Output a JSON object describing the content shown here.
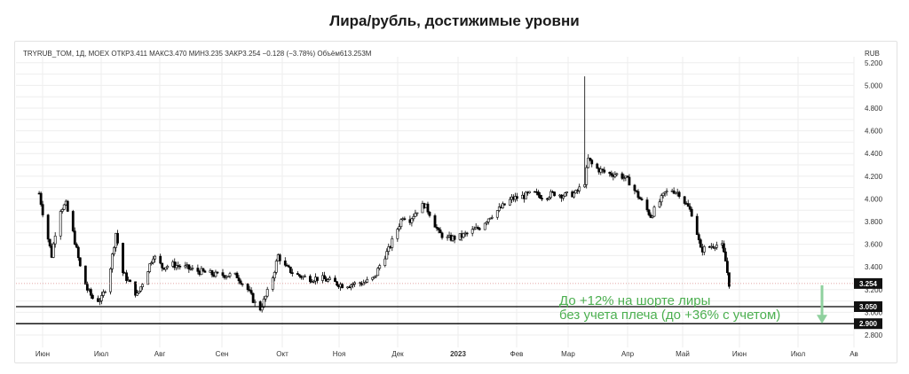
{
  "page": {
    "title": "Лира/рубль, достижимые уровни"
  },
  "chart_data": {
    "type": "candlestick",
    "title": "Лира/рубль, достижимые уровни",
    "info_line": "TRYRUB_TOM, 1Д, MOEX  ОТКР3.411  МАКС3.470  МИН3.235  ЗАКР3.254  −0.128 (−3.78%)  Объём613.253M",
    "currency": "RUB",
    "ylim": [
      2.8,
      5.2
    ],
    "y_ticks": [
      "2.800",
      "3.000",
      "3.200",
      "3.400",
      "3.600",
      "3.800",
      "4.000",
      "4.200",
      "4.400",
      "4.600",
      "4.800",
      "5.000",
      "5.200"
    ],
    "x_ticks": [
      "Июн",
      "Июл",
      "Авг",
      "Сен",
      "Окт",
      "Ноя",
      "Дек",
      "2023",
      "Фев",
      "Мар",
      "Апр",
      "Май",
      "Июн",
      "Июл",
      "Ав"
    ],
    "price_path": [
      [
        "2022-06-01",
        4.05
      ],
      [
        "2022-06-04",
        3.8
      ],
      [
        "2022-06-08",
        3.5
      ],
      [
        "2022-06-12",
        3.9
      ],
      [
        "2022-06-16",
        3.95
      ],
      [
        "2022-06-20",
        3.7
      ],
      [
        "2022-06-24",
        3.4
      ],
      [
        "2022-06-28",
        3.2
      ],
      [
        "2022-07-02",
        3.1
      ],
      [
        "2022-07-06",
        3.12
      ],
      [
        "2022-07-10",
        3.3
      ],
      [
        "2022-07-14",
        3.7
      ],
      [
        "2022-07-18",
        3.35
      ],
      [
        "2022-07-22",
        3.25
      ],
      [
        "2022-07-26",
        3.15
      ],
      [
        "2022-07-30",
        3.3
      ],
      [
        "2022-08-04",
        3.5
      ],
      [
        "2022-08-09",
        3.4
      ],
      [
        "2022-08-15",
        3.42
      ],
      [
        "2022-08-21",
        3.4
      ],
      [
        "2022-08-27",
        3.37
      ],
      [
        "2022-09-02",
        3.35
      ],
      [
        "2022-09-08",
        3.33
      ],
      [
        "2022-09-14",
        3.33
      ],
      [
        "2022-09-20",
        3.32
      ],
      [
        "2022-09-26",
        3.2
      ],
      [
        "2022-09-30",
        3.08
      ],
      [
        "2022-10-02",
        3.0
      ],
      [
        "2022-10-05",
        3.1
      ],
      [
        "2022-10-09",
        3.25
      ],
      [
        "2022-10-13",
        3.5
      ],
      [
        "2022-10-17",
        3.4
      ],
      [
        "2022-10-23",
        3.33
      ],
      [
        "2022-10-30",
        3.3
      ],
      [
        "2022-11-06",
        3.3
      ],
      [
        "2022-11-12",
        3.27
      ],
      [
        "2022-11-18",
        3.24
      ],
      [
        "2022-11-24",
        3.25
      ],
      [
        "2022-11-30",
        3.26
      ],
      [
        "2022-12-06",
        3.3
      ],
      [
        "2022-12-10",
        3.45
      ],
      [
        "2022-12-14",
        3.55
      ],
      [
        "2022-12-18",
        3.7
      ],
      [
        "2022-12-22",
        3.85
      ],
      [
        "2022-12-26",
        3.82
      ],
      [
        "2022-12-30",
        3.9
      ],
      [
        "2023-01-03",
        3.95
      ],
      [
        "2023-01-07",
        3.85
      ],
      [
        "2023-01-11",
        3.7
      ],
      [
        "2023-01-16",
        3.65
      ],
      [
        "2023-01-22",
        3.66
      ],
      [
        "2023-01-28",
        3.7
      ],
      [
        "2023-02-03",
        3.75
      ],
      [
        "2023-02-09",
        3.85
      ],
      [
        "2023-02-15",
        3.92
      ],
      [
        "2023-02-21",
        4.0
      ],
      [
        "2023-02-27",
        4.02
      ],
      [
        "2023-03-05",
        4.05
      ],
      [
        "2023-03-11",
        4.02
      ],
      [
        "2023-03-17",
        4.05
      ],
      [
        "2023-03-23",
        4.03
      ],
      [
        "2023-03-29",
        4.05
      ],
      [
        "2023-04-03",
        4.15
      ],
      [
        "2023-04-05",
        4.35
      ],
      [
        "2023-04-08",
        4.28
      ],
      [
        "2023-04-12",
        4.25
      ],
      [
        "2023-04-16",
        4.22
      ],
      [
        "2023-04-20",
        4.22
      ],
      [
        "2023-04-24",
        4.2
      ],
      [
        "2023-04-28",
        4.15
      ],
      [
        "2023-05-02",
        4.05
      ],
      [
        "2023-05-06",
        3.95
      ],
      [
        "2023-05-10",
        3.85
      ],
      [
        "2023-05-14",
        3.95
      ],
      [
        "2023-05-18",
        4.05
      ],
      [
        "2023-05-22",
        4.08
      ],
      [
        "2023-05-26",
        4.05
      ],
      [
        "2023-05-30",
        3.95
      ],
      [
        "2023-06-03",
        3.85
      ],
      [
        "2023-06-07",
        3.55
      ],
      [
        "2023-06-11",
        3.57
      ],
      [
        "2023-06-15",
        3.6
      ],
      [
        "2023-06-19",
        3.58
      ],
      [
        "2023-06-21",
        3.45
      ],
      [
        "2023-06-23",
        3.254
      ]
    ],
    "spike": {
      "date": "2023-04-03",
      "high": 5.08
    },
    "last_price": {
      "value": 3.254,
      "label": "3.254"
    },
    "levels": [
      {
        "value": 3.05,
        "label": "3.050"
      },
      {
        "value": 2.9,
        "label": "2.900"
      }
    ],
    "annotation": {
      "line1": "До +12% на шорте лиры",
      "line2": "без учета плеча (до +36% с учетом)",
      "color": "#4caf50"
    },
    "colors": {
      "up": "#ffffff",
      "down": "#000000",
      "wick": "#000000",
      "grid": "#eeeeee",
      "text": "#333333",
      "arrow": "#8fd19e"
    }
  }
}
